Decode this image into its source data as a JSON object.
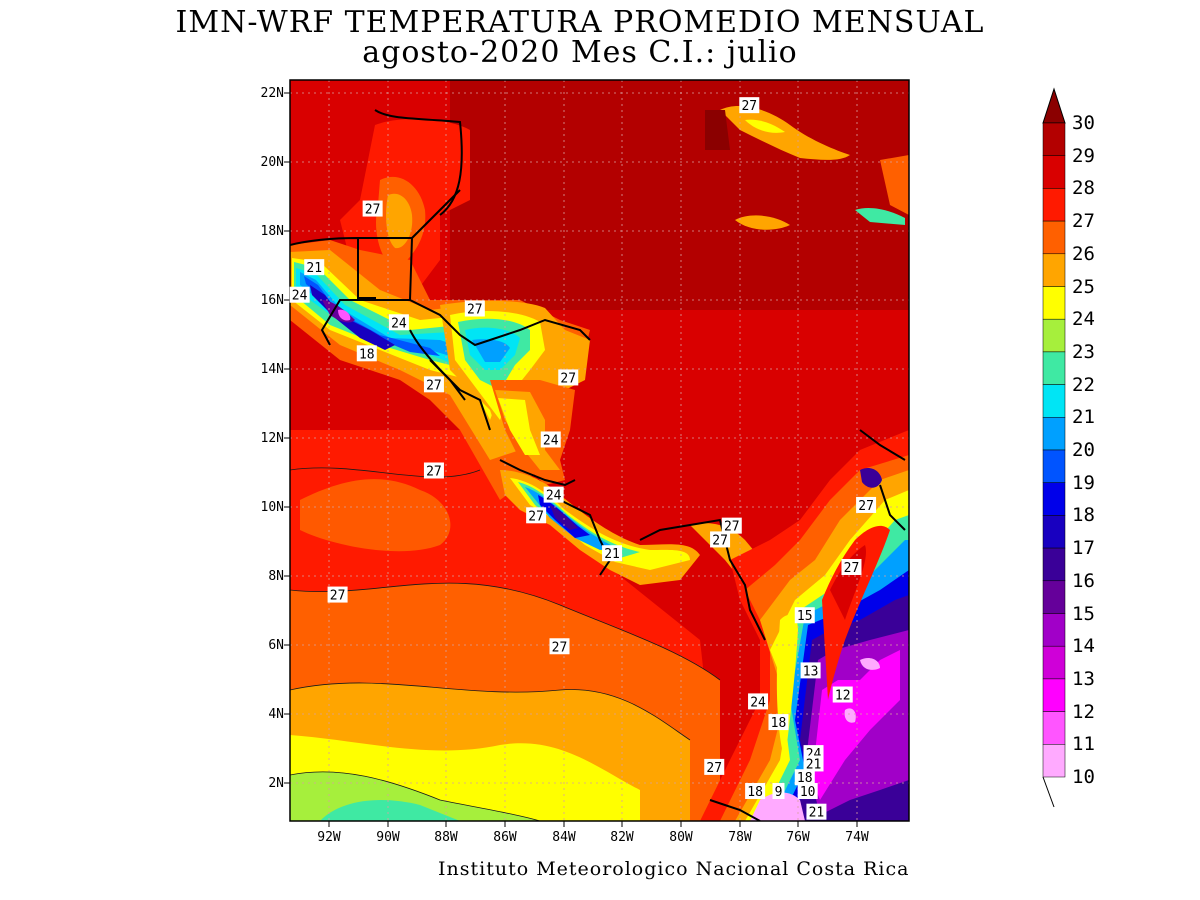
{
  "title_line1": "IMN-WRF  TEMPERATURA PROMEDIO MENSUAL",
  "title_line2": "agosto-2020 Mes C.I.: julio",
  "footer": "Instituto Meteorologico Nacional Costa Rica",
  "latitude_labels": [
    "22N",
    "20N",
    "18N",
    "16N",
    "14N",
    "12N",
    "10N",
    "8N",
    "6N",
    "4N",
    "2N"
  ],
  "longitude_labels": [
    "92W",
    "90W",
    "88W",
    "86W",
    "84W",
    "82W",
    "80W",
    "78W",
    "76W",
    "74W"
  ],
  "colorbar": {
    "levels": [
      "30",
      "29",
      "28",
      "27",
      "26",
      "25",
      "24",
      "23",
      "22",
      "21",
      "20",
      "19",
      "18",
      "17",
      "16",
      "15",
      "14",
      "13",
      "12",
      "11",
      "10"
    ],
    "colors": [
      "#8b0000",
      "#b30000",
      "#d90000",
      "#ff1a00",
      "#ff6000",
      "#ffa500",
      "#ffff00",
      "#a6ef3c",
      "#3fe9a3",
      "#00e5f5",
      "#00a0ff",
      "#0054ff",
      "#0000ea",
      "#1800c0",
      "#3a0098",
      "#65009a",
      "#a100c8",
      "#cf00d8",
      "#ff00ff",
      "#ff55ff",
      "#ffaaff"
    ]
  },
  "contour_labels": [
    {
      "text": "27",
      "lon": -77.6,
      "lat": 21.7
    },
    {
      "text": "27",
      "lon": -90.5,
      "lat": 18.7
    },
    {
      "text": "21",
      "lon": -92.5,
      "lat": 17.0
    },
    {
      "text": "24",
      "lon": -93.0,
      "lat": 16.2
    },
    {
      "text": "24",
      "lon": -89.6,
      "lat": 15.4
    },
    {
      "text": "18",
      "lon": -90.7,
      "lat": 14.5
    },
    {
      "text": "27",
      "lon": -87.0,
      "lat": 15.8
    },
    {
      "text": "27",
      "lon": -88.4,
      "lat": 13.6
    },
    {
      "text": "27",
      "lon": -83.8,
      "lat": 13.8
    },
    {
      "text": "24",
      "lon": -84.4,
      "lat": 12.0
    },
    {
      "text": "27",
      "lon": -88.4,
      "lat": 11.1
    },
    {
      "text": "24",
      "lon": -84.3,
      "lat": 10.4
    },
    {
      "text": "27",
      "lon": -84.9,
      "lat": 9.8
    },
    {
      "text": "21",
      "lon": -82.3,
      "lat": 8.7
    },
    {
      "text": "27",
      "lon": -78.2,
      "lat": 9.5
    },
    {
      "text": "27",
      "lon": -78.6,
      "lat": 9.1
    },
    {
      "text": "27",
      "lon": -91.7,
      "lat": 7.5
    },
    {
      "text": "27",
      "lon": -84.1,
      "lat": 6.0
    },
    {
      "text": "27",
      "lon": -73.6,
      "lat": 10.1
    },
    {
      "text": "27",
      "lon": -74.1,
      "lat": 8.3
    },
    {
      "text": "15",
      "lon": -75.7,
      "lat": 6.9
    },
    {
      "text": "24",
      "lon": -77.3,
      "lat": 4.4
    },
    {
      "text": "13",
      "lon": -75.5,
      "lat": 5.3
    },
    {
      "text": "12",
      "lon": -74.4,
      "lat": 4.6
    },
    {
      "text": "18",
      "lon": -76.6,
      "lat": 3.8
    },
    {
      "text": "24",
      "lon": -75.4,
      "lat": 2.9
    },
    {
      "text": "21",
      "lon": -75.4,
      "lat": 2.6
    },
    {
      "text": "27",
      "lon": -78.8,
      "lat": 2.5
    },
    {
      "text": "18",
      "lon": -75.7,
      "lat": 2.2
    },
    {
      "text": "10",
      "lon": -75.6,
      "lat": 1.8
    },
    {
      "text": "18",
      "lon": -77.4,
      "lat": 1.8
    },
    {
      "text": "9",
      "lon": -76.6,
      "lat": 1.8
    },
    {
      "text": "21",
      "lon": -75.3,
      "lat": 1.2
    }
  ]
}
